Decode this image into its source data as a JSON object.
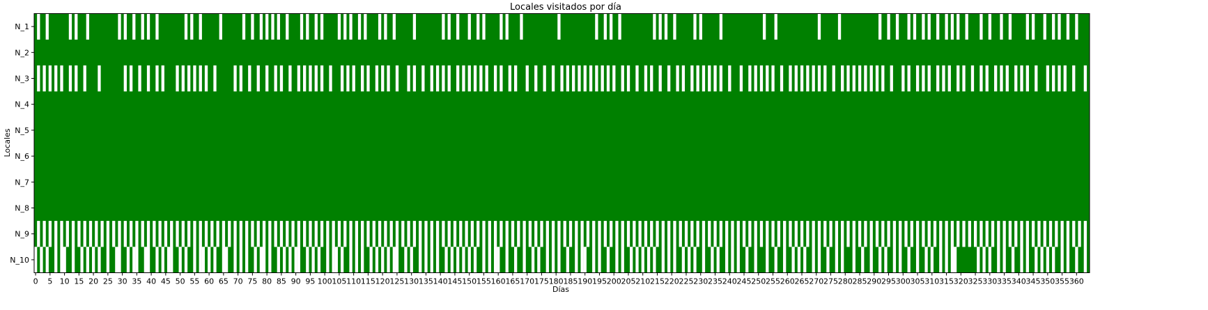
{
  "chart_data": {
    "type": "heatmap",
    "title": "Locales visitados por día",
    "xlabel": "Días",
    "ylabel": "Locales",
    "rows": [
      "N_1",
      "N_2",
      "N_3",
      "N_4",
      "N_5",
      "N_6",
      "N_7",
      "N_8",
      "N_9",
      "N_10"
    ],
    "x_ticks": [
      0,
      5,
      10,
      15,
      20,
      25,
      30,
      35,
      40,
      45,
      50,
      55,
      60,
      65,
      70,
      75,
      80,
      85,
      90,
      95,
      100,
      105,
      110,
      115,
      120,
      125,
      130,
      135,
      140,
      145,
      150,
      155,
      160,
      165,
      170,
      175,
      180,
      185,
      190,
      195,
      200,
      205,
      210,
      215,
      220,
      225,
      230,
      235,
      240,
      245,
      250,
      255,
      260,
      265,
      270,
      275,
      280,
      285,
      290,
      295,
      300,
      305,
      310,
      315,
      320,
      325,
      330,
      335,
      340,
      345,
      350,
      355,
      360
    ],
    "xlim": [
      0,
      365
    ],
    "visited_color": "#008000",
    "not_visited_color": "#ffffff",
    "unvisited_days": {
      "N_1": [
        1,
        4,
        12,
        14,
        18,
        29,
        31,
        34,
        37,
        39,
        42,
        52,
        54,
        57,
        64,
        72,
        75,
        78,
        80,
        82,
        84,
        87,
        92,
        94,
        97,
        99,
        105,
        107,
        109,
        112,
        114,
        119,
        121,
        124,
        131,
        141,
        143,
        146,
        150,
        153,
        155,
        161,
        163,
        168,
        181,
        194,
        197,
        199,
        202,
        214,
        216,
        218,
        221,
        228,
        230,
        237,
        252,
        256,
        271,
        278,
        292,
        295,
        298,
        302,
        304,
        307,
        309,
        312,
        315,
        317,
        319,
        322,
        327,
        330,
        334,
        337,
        343,
        345,
        349,
        352,
        354,
        357,
        360
      ],
      "N_2": [],
      "N_3": [
        1,
        3,
        5,
        7,
        9,
        12,
        14,
        17,
        22,
        31,
        33,
        36,
        39,
        42,
        44,
        49,
        51,
        53,
        55,
        57,
        59,
        62,
        69,
        71,
        74,
        77,
        80,
        83,
        85,
        88,
        91,
        93,
        95,
        97,
        99,
        102,
        106,
        108,
        110,
        113,
        115,
        118,
        120,
        122,
        125,
        129,
        131,
        134,
        137,
        139,
        141,
        143,
        146,
        148,
        150,
        152,
        154,
        156,
        159,
        161,
        164,
        166,
        170,
        173,
        176,
        179,
        182,
        184,
        186,
        188,
        190,
        192,
        194,
        196,
        198,
        200,
        203,
        205,
        208,
        211,
        213,
        216,
        219,
        222,
        224,
        227,
        229,
        231,
        233,
        235,
        237,
        240,
        244,
        247,
        249,
        251,
        253,
        255,
        258,
        261,
        263,
        265,
        267,
        269,
        271,
        273,
        276,
        279,
        281,
        283,
        285,
        287,
        289,
        291,
        293,
        296,
        300,
        302,
        305,
        307,
        309,
        312,
        314,
        316,
        319,
        321,
        324,
        327,
        329,
        332,
        334,
        336,
        339,
        341,
        343,
        346,
        350,
        352,
        354,
        356,
        359,
        363
      ],
      "N_4": [],
      "N_5": [],
      "N_6": [],
      "N_7": [],
      "N_8": [],
      "N_9": "odd",
      "N_10": [
        0,
        2,
        4,
        7,
        9,
        10,
        13,
        16,
        18,
        20,
        22,
        25,
        28,
        29,
        32,
        34,
        35,
        38,
        39,
        42,
        44,
        46,
        47,
        50,
        52,
        55,
        57,
        58,
        60,
        62,
        65,
        66,
        69,
        71,
        73,
        76,
        78,
        79,
        81,
        84,
        86,
        88,
        90,
        91,
        94,
        96,
        98,
        101,
        103,
        104,
        106,
        109,
        111,
        113,
        116,
        118,
        120,
        122,
        124,
        125,
        128,
        130,
        133,
        135,
        137,
        139,
        142,
        144,
        146,
        148,
        150,
        152,
        155,
        157,
        159,
        160,
        163,
        166,
        169,
        172,
        174,
        177,
        179,
        181,
        184,
        187,
        189,
        190,
        193,
        195,
        198,
        201,
        203,
        206,
        208,
        210,
        212,
        214,
        217,
        219,
        221,
        224,
        226,
        228,
        231,
        234,
        236,
        239,
        241,
        243,
        246,
        249,
        253,
        256,
        259,
        262,
        264,
        266,
        269,
        271,
        274,
        277,
        279,
        283,
        286,
        289,
        292,
        294,
        297,
        299,
        302,
        305,
        308,
        310,
        313,
        315,
        317,
        318,
        326,
        328,
        330,
        333,
        335,
        338,
        341,
        343,
        346,
        348,
        350,
        352,
        355,
        357,
        360,
        363
      ]
    }
  }
}
